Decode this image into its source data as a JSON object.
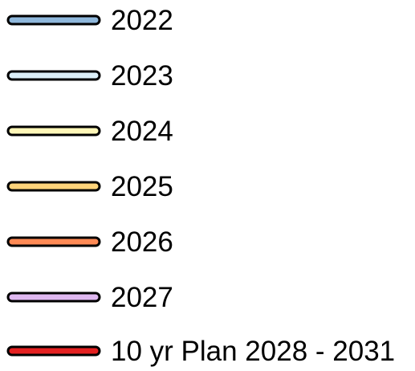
{
  "legend": {
    "items": [
      {
        "label": "2022",
        "color": "#8fb8dc"
      },
      {
        "label": "2023",
        "color": "#dceff8"
      },
      {
        "label": "2024",
        "color": "#fff7b8"
      },
      {
        "label": "2025",
        "color": "#ffd47a"
      },
      {
        "label": "2026",
        "color": "#ff8a55"
      },
      {
        "label": "2027",
        "color": "#dfb8f0"
      },
      {
        "label": "10 yr Plan 2028 - 2031",
        "color": "#e42121"
      }
    ]
  }
}
